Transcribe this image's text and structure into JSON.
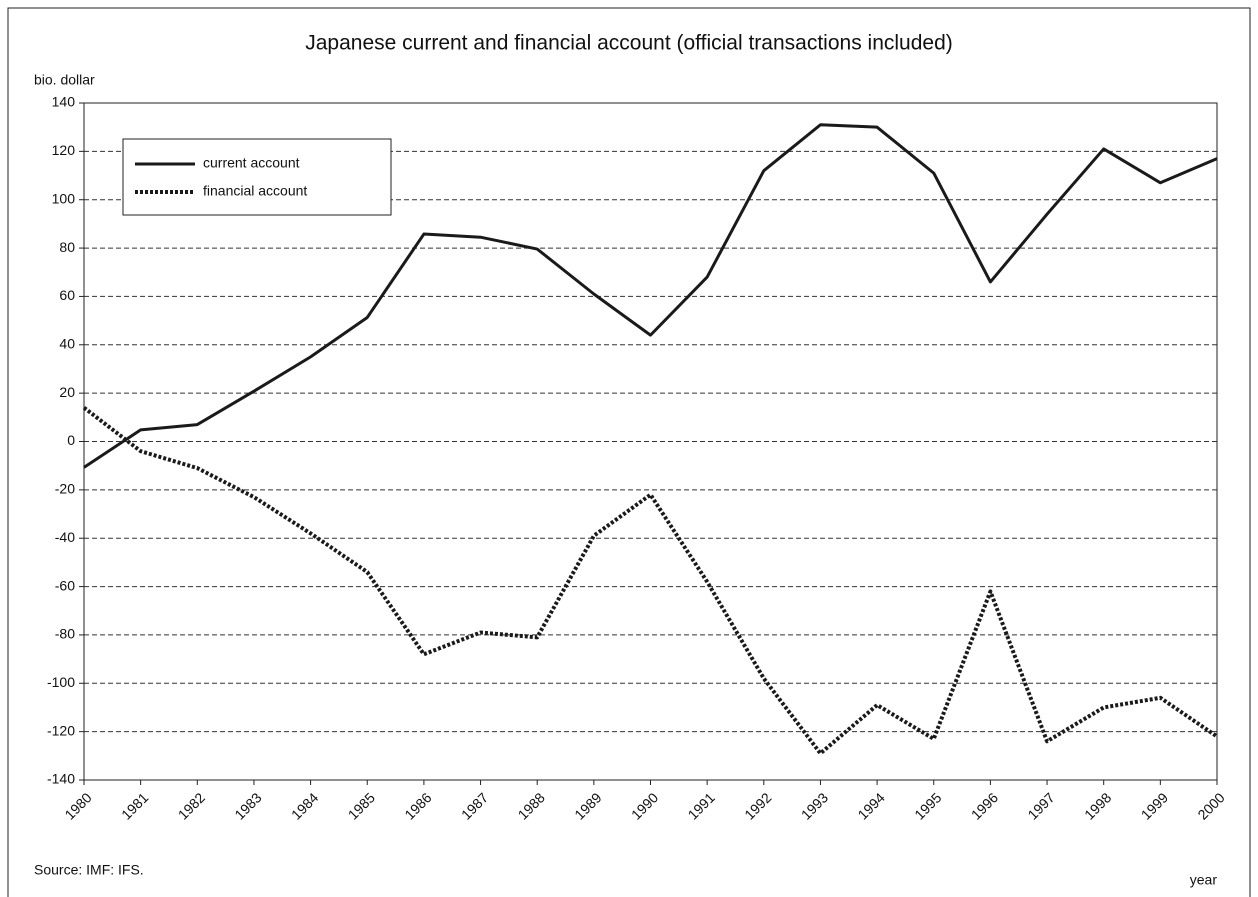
{
  "chart_data": {
    "type": "line",
    "title": "Japanese current and financial account (official transactions included)",
    "y_label": "bio. dollar",
    "x_label": "year",
    "source": "Source: IMF: IFS.",
    "x": [
      1980,
      1981,
      1982,
      1983,
      1984,
      1985,
      1986,
      1987,
      1988,
      1989,
      1990,
      1991,
      1992,
      1993,
      1994,
      1995,
      1996,
      1997,
      1998,
      1999,
      2000
    ],
    "xlim": [
      1980,
      2000
    ],
    "xticks": [
      1980,
      1981,
      1982,
      1983,
      1984,
      1985,
      1986,
      1987,
      1988,
      1989,
      1990,
      1991,
      1992,
      1993,
      1994,
      1995,
      1996,
      1997,
      1998,
      1999,
      2000
    ],
    "ylim": [
      -140,
      140
    ],
    "yticks": [
      -140,
      -120,
      -100,
      -80,
      -60,
      -40,
      -20,
      0,
      20,
      40,
      60,
      80,
      100,
      120,
      140
    ],
    "grid": true,
    "legend": "top-left",
    "series": [
      {
        "name": "current account",
        "color": "#1a1a1a",
        "style": "solid",
        "values": [
          -10.7,
          4.8,
          7,
          20.8,
          35,
          51.3,
          85.8,
          84.5,
          79.6,
          61,
          44,
          68,
          112,
          131,
          130,
          111,
          66,
          94,
          121,
          107,
          117
        ]
      },
      {
        "name": "financial account",
        "color": "#1a1a1a",
        "style": "dotted",
        "values": [
          14,
          -4,
          -11,
          -23,
          -38,
          -54,
          -88,
          -79,
          -81,
          -39,
          -22,
          -58,
          -98,
          -129,
          -109,
          -123,
          -62,
          -124,
          -110,
          -106,
          -122
        ]
      }
    ]
  }
}
